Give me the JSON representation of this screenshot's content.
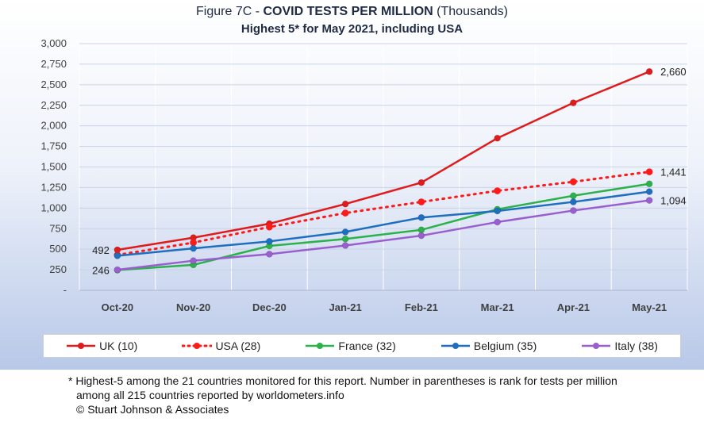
{
  "title": {
    "prefix": "Figure 7C - ",
    "main": "COVID TESTS PER MILLION",
    "suffix": " (Thousands)",
    "subtitle": "Highest 5* for May 2021, including USA"
  },
  "chart_data": {
    "type": "line",
    "title": "Figure 7C - COVID TESTS PER MILLION (Thousands)",
    "subtitle": "Highest 5* for May 2021, including USA",
    "categories": [
      "Oct-20",
      "Nov-20",
      "Dec-20",
      "Jan-21",
      "Feb-21",
      "Mar-21",
      "Apr-21",
      "May-21"
    ],
    "ylim": [
      0,
      3000
    ],
    "yticks": [
      {
        "value": 0,
        "label": "-"
      },
      {
        "value": 250,
        "label": "250"
      },
      {
        "value": 500,
        "label": "500"
      },
      {
        "value": 750,
        "label": "750"
      },
      {
        "value": 1000,
        "label": "1,000"
      },
      {
        "value": 1250,
        "label": "1,250"
      },
      {
        "value": 1500,
        "label": "1,500"
      },
      {
        "value": 1750,
        "label": "1,750"
      },
      {
        "value": 2000,
        "label": "2,000"
      },
      {
        "value": 2250,
        "label": "2,250"
      },
      {
        "value": 2500,
        "label": "2,500"
      },
      {
        "value": 2750,
        "label": "2,750"
      },
      {
        "value": 3000,
        "label": "3,000"
      }
    ],
    "grid": "horizontal",
    "legend_position": "bottom",
    "series": [
      {
        "name": "UK (10)",
        "color": "#e01b1b",
        "dash": "solid",
        "values": [
          492,
          640,
          810,
          1050,
          1310,
          1850,
          2280,
          2660
        ]
      },
      {
        "name": "USA (28)",
        "color": "#ff1a1a",
        "dash": "dotted",
        "values": [
          430,
          580,
          770,
          940,
          1075,
          1210,
          1320,
          1441
        ]
      },
      {
        "name": "France (32)",
        "color": "#2bb24c",
        "dash": "solid",
        "values": [
          246,
          310,
          540,
          625,
          735,
          985,
          1150,
          1295
        ]
      },
      {
        "name": "Belgium (35)",
        "color": "#1f6fc0",
        "dash": "solid",
        "values": [
          420,
          510,
          595,
          710,
          885,
          965,
          1075,
          1200
        ]
      },
      {
        "name": "Italy (38)",
        "color": "#9a5fcf",
        "dash": "solid",
        "values": [
          250,
          360,
          440,
          545,
          665,
          830,
          970,
          1094
        ]
      }
    ],
    "annotations": [
      {
        "text": "492",
        "series": 0,
        "point": 0,
        "side": "left"
      },
      {
        "text": "246",
        "series": 2,
        "point": 0,
        "side": "left"
      },
      {
        "text": "2,660",
        "series": 0,
        "point": 7,
        "side": "right"
      },
      {
        "text": "1,441",
        "series": 1,
        "point": 7,
        "side": "right"
      },
      {
        "text": "1,094",
        "series": 4,
        "point": 7,
        "side": "right"
      }
    ]
  },
  "footnote": {
    "line1": "* Highest-5 among the 21 countries monitored for this report. Number in parentheses is rank for tests per million",
    "line2": "among all 215 countries reported by worldometers.info",
    "line3": "© Stuart Johnson & Associates"
  }
}
